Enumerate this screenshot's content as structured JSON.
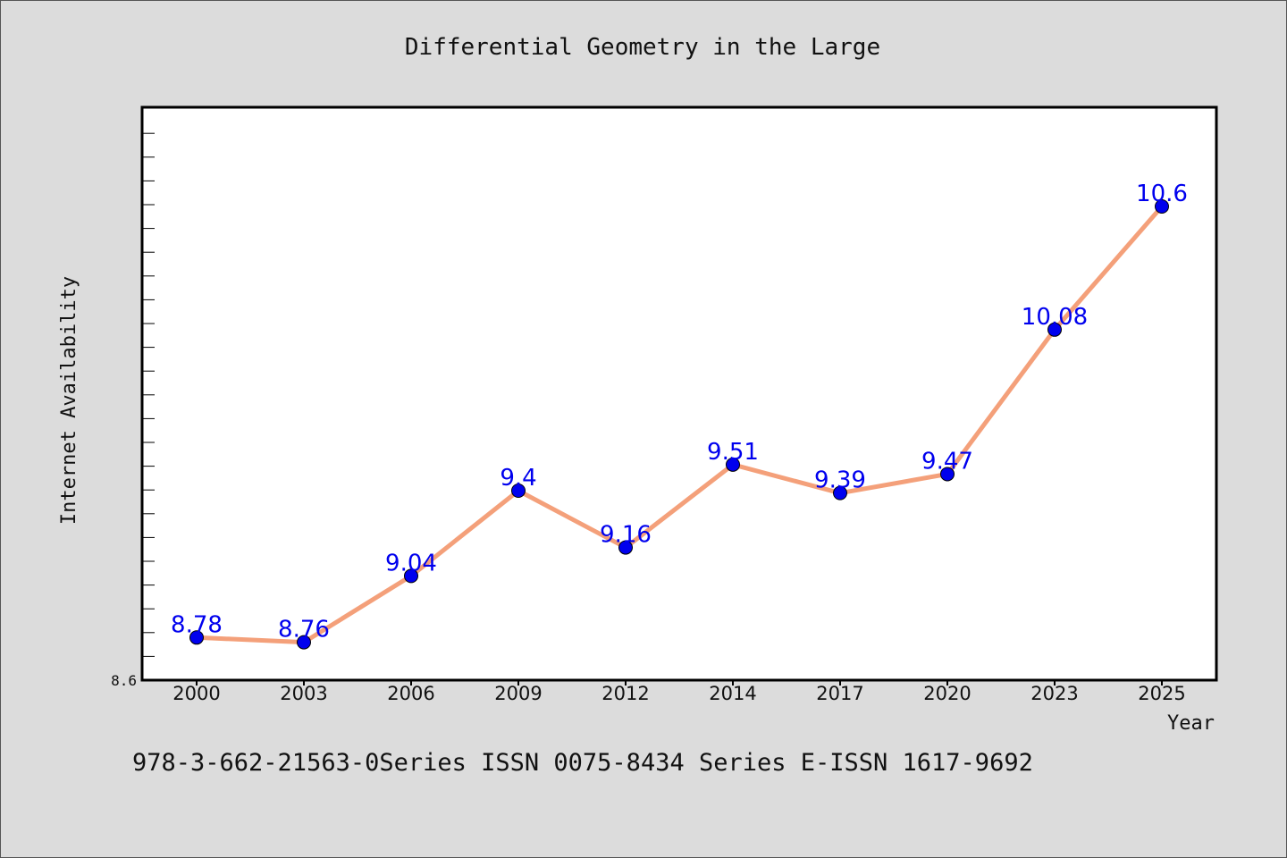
{
  "chart_data": {
    "type": "line",
    "title": "Differential Geometry in the Large",
    "xlabel": "Year",
    "ylabel": "Internet Availability",
    "categories": [
      "2000",
      "2003",
      "2006",
      "2009",
      "2012",
      "2014",
      "2017",
      "2020",
      "2023",
      "2025"
    ],
    "series": [
      {
        "values": [
          8.78,
          8.76,
          9.04,
          9.4,
          9.16,
          9.51,
          9.39,
          9.47,
          10.08,
          10.6
        ],
        "data_labels": [
          "8.78",
          "8.76",
          "9.04",
          "9.4",
          "9.16",
          "9.51",
          "9.39",
          "9.47",
          "10.08",
          "10.6"
        ],
        "line_color": "#f4a07a",
        "marker_color": "#0000ee"
      }
    ],
    "y_tick_labels": [
      "8.6"
    ],
    "ylim": [
      8.6,
      11.0
    ],
    "grid": false,
    "legend": "none"
  },
  "footer": {
    "text": "978-3-662-21563-0Series ISSN 0075-8434 Series E-ISSN 1617-9692"
  },
  "colors": {
    "background": "#dcdcdc",
    "plot_background": "#ffffff",
    "label_color": "#0000ee"
  }
}
